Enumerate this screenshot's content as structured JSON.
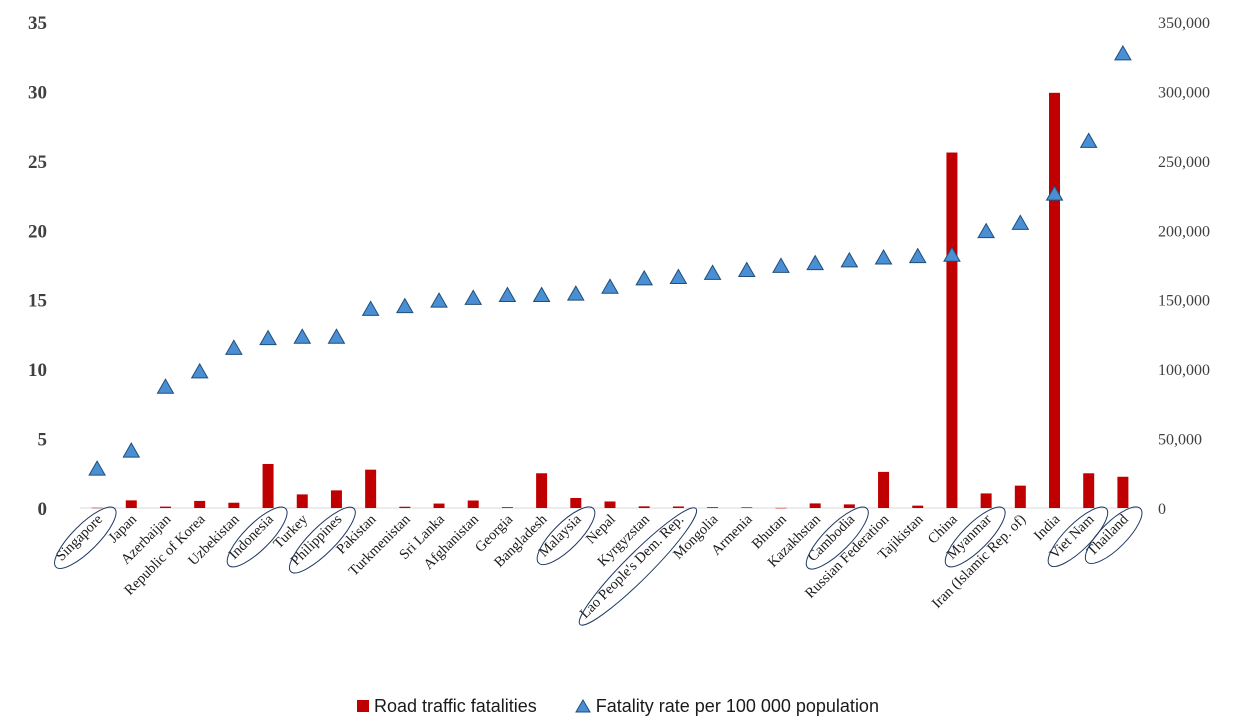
{
  "chart_data": {
    "type": "bar",
    "categories": [
      "Singapore",
      "Japan",
      "Azerbaijan",
      "Republic of Korea",
      "Uzbekistan",
      "Indonesia",
      "Turkey",
      "Philippines",
      "Pakistan",
      "Turkmenistan",
      "Sri Lanka",
      "Afghanistan",
      "Georgia",
      "Bangladesh",
      "Malaysia",
      "Nepal",
      "Kyrgyzstan",
      "Lao People's Dem. Rep.",
      "Mongolia",
      "Armenia",
      "Bhutan",
      "Kazakhstan",
      "Cambodia",
      "Russian Federation",
      "Tajikistan",
      "China",
      "Myanmar",
      "Iran (Islamic Rep. of)",
      "India",
      "Viet Nam",
      "Thailand"
    ],
    "circled_categories": [
      "Singapore",
      "Indonesia",
      "Philippines",
      "Malaysia",
      "Lao People's Dem. Rep.",
      "Cambodia",
      "Myanmar",
      "Viet Nam",
      "Thailand"
    ],
    "series": [
      {
        "name": "Road traffic fatalities",
        "type": "bar",
        "axis": "right",
        "color": "#c00000",
        "values": [
          200,
          5500,
          1000,
          5100,
          3800,
          31700,
          9800,
          12700,
          27600,
          900,
          3200,
          5400,
          600,
          25000,
          7200,
          4700,
          1200,
          1100,
          600,
          500,
          100,
          3300,
          2600,
          26000,
          1700,
          256000,
          10500,
          16100,
          299000,
          25000,
          22500
        ]
      },
      {
        "name": "Fatality rate per 100 000 population",
        "type": "scatter",
        "marker": "triangle",
        "axis": "left",
        "color": "#4a8fd4",
        "values": [
          2.8,
          4.1,
          8.7,
          9.8,
          11.5,
          12.2,
          12.3,
          12.3,
          14.3,
          14.5,
          14.9,
          15.1,
          15.3,
          15.3,
          15.4,
          15.9,
          16.5,
          16.6,
          16.9,
          17.1,
          17.4,
          17.6,
          17.8,
          18.0,
          18.1,
          18.2,
          19.9,
          20.5,
          22.6,
          26.4,
          32.7
        ]
      }
    ],
    "y_left": {
      "ylim": [
        0,
        35
      ],
      "ticks": [
        "0",
        "5",
        "10",
        "15",
        "20",
        "25",
        "30",
        "35"
      ]
    },
    "y_right": {
      "ylim": [
        0,
        350000
      ],
      "ticks": [
        "0",
        "50,000",
        "100,000",
        "150,000",
        "200,000",
        "250,000",
        "300,000",
        "350,000"
      ]
    },
    "grid": false,
    "legend_position": "bottom-center"
  }
}
